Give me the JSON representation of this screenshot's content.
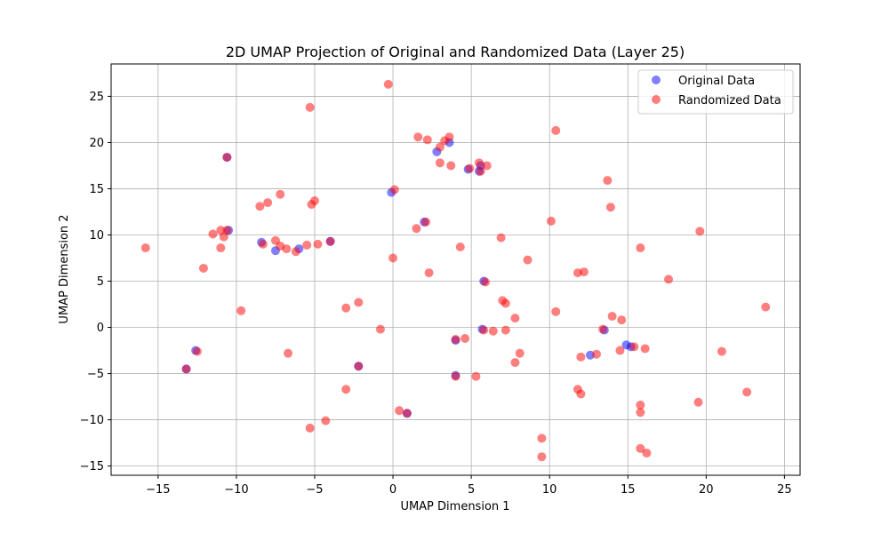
{
  "chart_data": {
    "type": "scatter",
    "title": "2D UMAP Projection of Original and Randomized Data (Layer 25)",
    "xlabel": "UMAP Dimension 1",
    "ylabel": "UMAP Dimension 2",
    "xlim": [
      -18,
      26
    ],
    "ylim": [
      -16,
      28.5
    ],
    "xticks": [
      -15,
      -10,
      -5,
      0,
      5,
      10,
      15,
      20,
      25
    ],
    "yticks": [
      -15,
      -10,
      -5,
      0,
      5,
      10,
      15,
      20,
      25
    ],
    "grid": true,
    "legend_position": "top-right",
    "series": [
      {
        "name": "Original Data",
        "color": "#0000ff",
        "points": [
          [
            -10.6,
            18.4
          ],
          [
            -0.1,
            14.6
          ],
          [
            -8.4,
            9.2
          ],
          [
            -7.5,
            8.3
          ],
          [
            -6.0,
            8.5
          ],
          [
            2.0,
            11.4
          ],
          [
            2.8,
            19.0
          ],
          [
            3.6,
            20.0
          ],
          [
            5.6,
            17.5
          ],
          [
            5.5,
            16.9
          ],
          [
            4.8,
            17.1
          ],
          [
            12.6,
            -3.0
          ],
          [
            14.9,
            -1.9
          ],
          [
            15.2,
            -2.1
          ],
          [
            13.5,
            -0.3
          ],
          [
            5.7,
            -0.2
          ],
          [
            4.0,
            -5.2
          ],
          [
            4.0,
            -1.4
          ],
          [
            -13.2,
            -4.5
          ],
          [
            -2.2,
            -4.2
          ],
          [
            0.9,
            -9.3
          ],
          [
            -12.6,
            -2.5
          ],
          [
            -10.5,
            10.5
          ],
          [
            -4.0,
            9.3
          ],
          [
            5.8,
            5.0
          ]
        ]
      },
      {
        "name": "Randomized Data",
        "color": "#ff0000",
        "points": [
          [
            -0.3,
            26.3
          ],
          [
            -5.3,
            23.8
          ],
          [
            -10.6,
            18.4
          ],
          [
            10.4,
            21.3
          ],
          [
            1.6,
            20.6
          ],
          [
            2.2,
            20.3
          ],
          [
            3.3,
            20.2
          ],
          [
            3.6,
            20.6
          ],
          [
            3.0,
            19.5
          ],
          [
            3.0,
            17.8
          ],
          [
            3.7,
            17.5
          ],
          [
            5.5,
            17.8
          ],
          [
            6.0,
            17.5
          ],
          [
            4.9,
            17.2
          ],
          [
            5.6,
            16.9
          ],
          [
            -7.2,
            14.4
          ],
          [
            -8.0,
            13.5
          ],
          [
            -8.5,
            13.1
          ],
          [
            -5.0,
            13.7
          ],
          [
            -5.2,
            13.3
          ],
          [
            0.1,
            14.9
          ],
          [
            13.7,
            15.9
          ],
          [
            13.9,
            13.0
          ],
          [
            -11.0,
            10.5
          ],
          [
            -11.5,
            10.1
          ],
          [
            -10.8,
            9.8
          ],
          [
            -10.6,
            10.5
          ],
          [
            -11.0,
            8.6
          ],
          [
            -8.3,
            9.0
          ],
          [
            -7.5,
            9.4
          ],
          [
            -7.2,
            8.8
          ],
          [
            -6.8,
            8.5
          ],
          [
            -6.2,
            8.2
          ],
          [
            -5.5,
            8.9
          ],
          [
            -4.8,
            9.0
          ],
          [
            -4.0,
            9.3
          ],
          [
            1.5,
            10.7
          ],
          [
            2.1,
            11.4
          ],
          [
            10.1,
            11.5
          ],
          [
            6.9,
            9.7
          ],
          [
            4.3,
            8.7
          ],
          [
            15.8,
            8.6
          ],
          [
            19.6,
            10.4
          ],
          [
            -15.8,
            8.6
          ],
          [
            -12.1,
            6.4
          ],
          [
            0.0,
            7.5
          ],
          [
            2.3,
            5.9
          ],
          [
            5.9,
            4.9
          ],
          [
            8.6,
            7.3
          ],
          [
            11.8,
            5.9
          ],
          [
            12.2,
            6.0
          ],
          [
            17.6,
            5.2
          ],
          [
            -9.7,
            1.8
          ],
          [
            -3.0,
            2.1
          ],
          [
            -2.2,
            2.7
          ],
          [
            -0.8,
            -0.2
          ],
          [
            7.2,
            2.6
          ],
          [
            7.0,
            2.9
          ],
          [
            7.8,
            1.0
          ],
          [
            10.4,
            1.7
          ],
          [
            14.0,
            1.2
          ],
          [
            14.6,
            0.8
          ],
          [
            23.8,
            2.2
          ],
          [
            5.8,
            -0.3
          ],
          [
            6.4,
            -0.4
          ],
          [
            7.2,
            -0.3
          ],
          [
            4.0,
            -1.3
          ],
          [
            4.6,
            -1.2
          ],
          [
            13.4,
            -0.2
          ],
          [
            -12.5,
            -2.6
          ],
          [
            -6.7,
            -2.8
          ],
          [
            7.8,
            -3.8
          ],
          [
            8.1,
            -2.8
          ],
          [
            12.0,
            -3.2
          ],
          [
            13.0,
            -2.9
          ],
          [
            14.5,
            -2.5
          ],
          [
            15.4,
            -2.1
          ],
          [
            16.1,
            -2.3
          ],
          [
            21.0,
            -2.6
          ],
          [
            -13.2,
            -4.5
          ],
          [
            -2.2,
            -4.2
          ],
          [
            -3.0,
            -6.7
          ],
          [
            4.0,
            -5.3
          ],
          [
            5.3,
            -5.3
          ],
          [
            11.8,
            -6.7
          ],
          [
            12.0,
            -7.2
          ],
          [
            15.8,
            -8.4
          ],
          [
            15.8,
            -9.2
          ],
          [
            19.5,
            -8.1
          ],
          [
            22.6,
            -7.0
          ],
          [
            0.4,
            -9.0
          ],
          [
            0.9,
            -9.3
          ],
          [
            -5.3,
            -10.9
          ],
          [
            -4.3,
            -10.1
          ],
          [
            9.5,
            -12.0
          ],
          [
            15.8,
            -13.1
          ],
          [
            16.2,
            -13.6
          ],
          [
            9.5,
            -14.0
          ]
        ]
      }
    ]
  }
}
